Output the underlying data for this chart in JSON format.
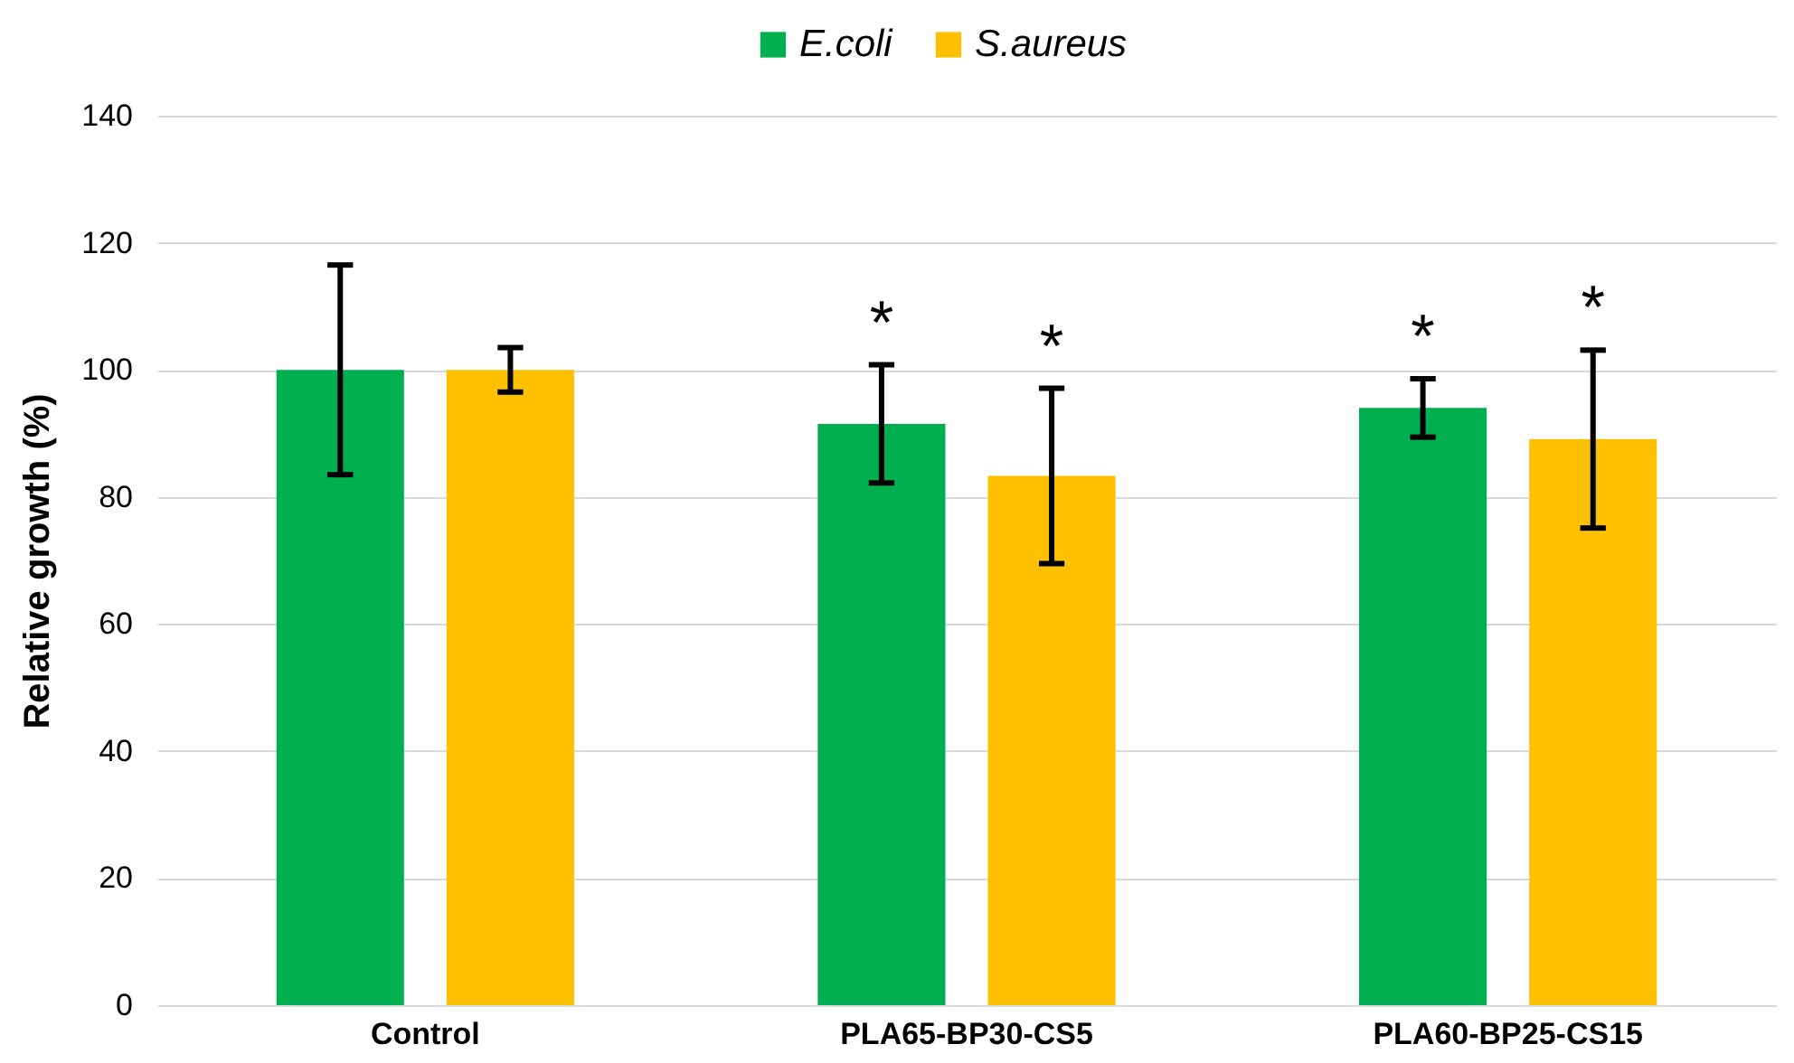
{
  "chart_data": {
    "type": "bar",
    "ylabel": "Relative growth (%)",
    "categories": [
      "Control",
      "PLA65-BP30-CS5",
      "PLA60-BP25-CS15"
    ],
    "series": [
      {
        "name": "E.coli",
        "color": "#00b050",
        "values": [
          100,
          91.5,
          94.0
        ],
        "errors": [
          16.5,
          9.3,
          4.6
        ]
      },
      {
        "name": "S.aureus",
        "color": "#ffc000",
        "values": [
          100,
          83.3,
          89.1
        ],
        "errors": [
          3.5,
          13.8,
          14
        ]
      }
    ],
    "annotations": [
      "*",
      "*",
      "*",
      "*"
    ],
    "ylim": [
      0,
      140
    ],
    "yticks": [
      0,
      20,
      40,
      60,
      80,
      100,
      120,
      140
    ],
    "grid": "y",
    "legend": "top"
  }
}
